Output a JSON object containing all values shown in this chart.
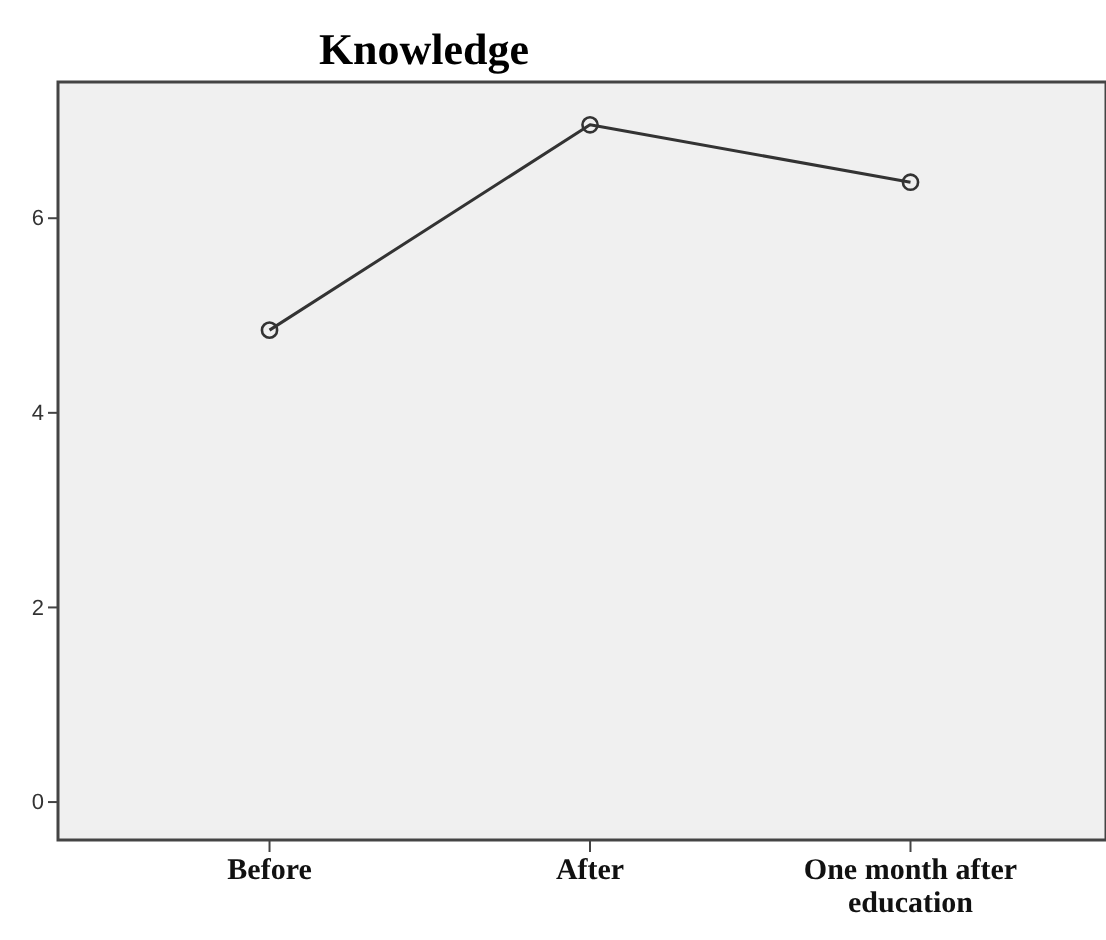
{
  "chart_data": {
    "type": "line",
    "title": "Knowledge",
    "categories": [
      "Before",
      "After",
      "One month after education"
    ],
    "series": [
      {
        "color": "#333333",
        "values": [
          4.85,
          6.96,
          6.37
        ]
      }
    ],
    "ylim": [
      -0.39,
      7.4
    ],
    "yticks": [
      0,
      2,
      4,
      6
    ],
    "grid": false,
    "marker": "circle",
    "line_style": "solid"
  }
}
